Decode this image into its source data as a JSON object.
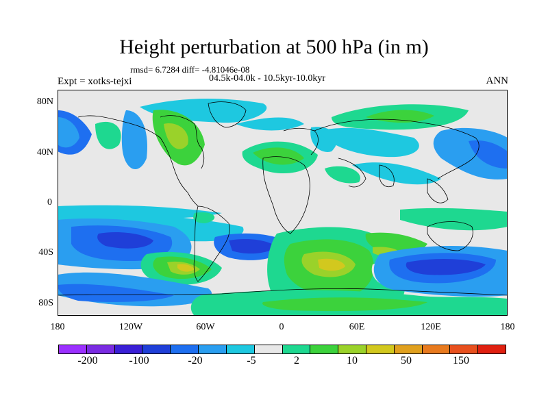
{
  "title": "Height perturbation at 500 hPa (in m)",
  "stats": "rmsd= 6.7284 diff= -4.81046e-08",
  "period": "04.5k-04.0k - 10.5kyr-10.0kyr",
  "experiment": "Expt = xotks-tejxi",
  "season": "ANN",
  "y_axis_labels": [
    "80N",
    "40N",
    "0",
    "40S",
    "80S"
  ],
  "x_axis_labels": [
    "180",
    "120W",
    "60W",
    "0",
    "60E",
    "120E",
    "180"
  ],
  "colorbar": {
    "colors": [
      "#9b30ff",
      "#7a2be2",
      "#3a1fd6",
      "#1f3fd8",
      "#1e6ff0",
      "#2a9ef0",
      "#1ec8e0",
      "#e8e8e8",
      "#1ed890",
      "#3cd23c",
      "#9ad22a",
      "#d2c81e",
      "#e0a01e",
      "#e87a1e",
      "#e8501e",
      "#e02010"
    ],
    "labels": [
      "-200",
      "-100",
      "-20",
      "-5",
      "2",
      "10",
      "50",
      "150"
    ]
  }
}
